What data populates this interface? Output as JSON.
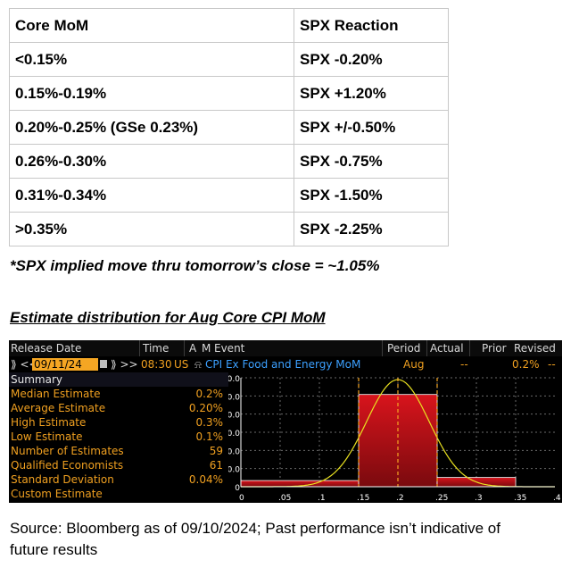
{
  "table": {
    "headers": [
      "Core MoM",
      "SPX Reaction"
    ],
    "rows": [
      [
        "<0.15%",
        "SPX -0.20%"
      ],
      [
        "0.15%-0.19%",
        "SPX +1.20%"
      ],
      [
        "0.20%-0.25% (GSe 0.23%)",
        "SPX +/-0.50%"
      ],
      [
        "0.26%-0.30%",
        "SPX -0.75%"
      ],
      [
        "0.31%-0.34%",
        "SPX -1.50%"
      ],
      [
        ">0.35%",
        "SPX -2.25%"
      ]
    ]
  },
  "note": "*SPX implied move thru tomorrow’s close = ~1.05%",
  "heading": "Estimate distribution for Aug Core CPI MoM",
  "terminal": {
    "columns": {
      "release_date": "Release Date",
      "time": "Time",
      "am": "A",
      "m": "M",
      "event": "Event",
      "period": "Period",
      "actual": "Actual",
      "prior": "Prior",
      "revised": "Revised"
    },
    "row": {
      "nav_left": "⟫ <<",
      "date": "09/11/24",
      "nav_right": "⟫ >>",
      "time": "08:30",
      "country": "US",
      "event": "CPI Ex Food and Energy MoM",
      "period": "Aug",
      "actual": "--",
      "prior": "0.2%",
      "revised": "--"
    },
    "summary": [
      {
        "label": "Summary",
        "value": ""
      },
      {
        "label": "Median Estimate",
        "value": "0.2%"
      },
      {
        "label": "Average Estimate",
        "value": "0.20%"
      },
      {
        "label": "High Estimate",
        "value": "0.3%"
      },
      {
        "label": "Low Estimate",
        "value": "0.1%"
      },
      {
        "label": "Number of Estimates",
        "value": "59"
      },
      {
        "label": "Qualified Economists",
        "value": "61"
      },
      {
        "label": "Standard Deviation",
        "value": "0.04%"
      },
      {
        "label": "Custom Estimate",
        "value": ""
      }
    ]
  },
  "source": "Source: Bloomberg as of 09/10/2024; Past performance isn’t indicative of future results",
  "chart_data": {
    "type": "bar",
    "x_ticks": [
      "0",
      ".05",
      ".1",
      ".15",
      ".2",
      ".25",
      ".3",
      ".35",
      ".4"
    ],
    "y_ticks": [
      "0",
      "10.0",
      "20.0",
      "30.0",
      "40.0",
      "50.0",
      "60.0"
    ],
    "xlim": [
      0,
      0.4
    ],
    "ylim": [
      0,
      60
    ],
    "bins": [
      {
        "from": 0.0,
        "to": 0.15,
        "value": 3.4
      },
      {
        "from": 0.15,
        "to": 0.25,
        "value": 50.8
      },
      {
        "from": 0.25,
        "to": 0.35,
        "value": 5.1
      }
    ],
    "normal_curve": {
      "mean": 0.2,
      "sd": 0.04,
      "peak": 59
    },
    "markers": [
      0.15,
      0.2,
      0.25
    ],
    "colors": {
      "bar": "#c8141c",
      "curve": "#e8e020",
      "marker": "#f5a623",
      "axis": "#ffffff",
      "grid": "#6a6a6a"
    }
  }
}
